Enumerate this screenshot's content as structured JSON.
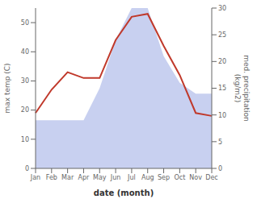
{
  "chart_data": {
    "type": "line",
    "xlabel": "date (month)",
    "ylabel": "max temp (C)",
    "y2label": "med. precipitation\n(kg/m2)",
    "categories": [
      "Jan",
      "Feb",
      "Mar",
      "Apr",
      "May",
      "Jun",
      "Jul",
      "Aug",
      "Sep",
      "Oct",
      "Nov",
      "Dec"
    ],
    "series": [
      {
        "type": "area",
        "color": "#c8d0f0",
        "axis": "y2",
        "values": [
          9,
          9,
          9,
          9,
          15,
          24,
          30,
          30,
          21,
          16,
          14,
          14
        ]
      },
      {
        "type": "line",
        "color": "#c0392b",
        "values": [
          19,
          27,
          33,
          31,
          31,
          44,
          52,
          53,
          42,
          32,
          19,
          18
        ]
      }
    ],
    "ylim": [
      0,
      55
    ],
    "yticks": [
      0,
      10,
      20,
      30,
      40,
      50
    ],
    "y2lim": [
      0,
      30
    ],
    "y2ticks": [
      0,
      5,
      10,
      15,
      20,
      25,
      30
    ],
    "grid": false
  }
}
